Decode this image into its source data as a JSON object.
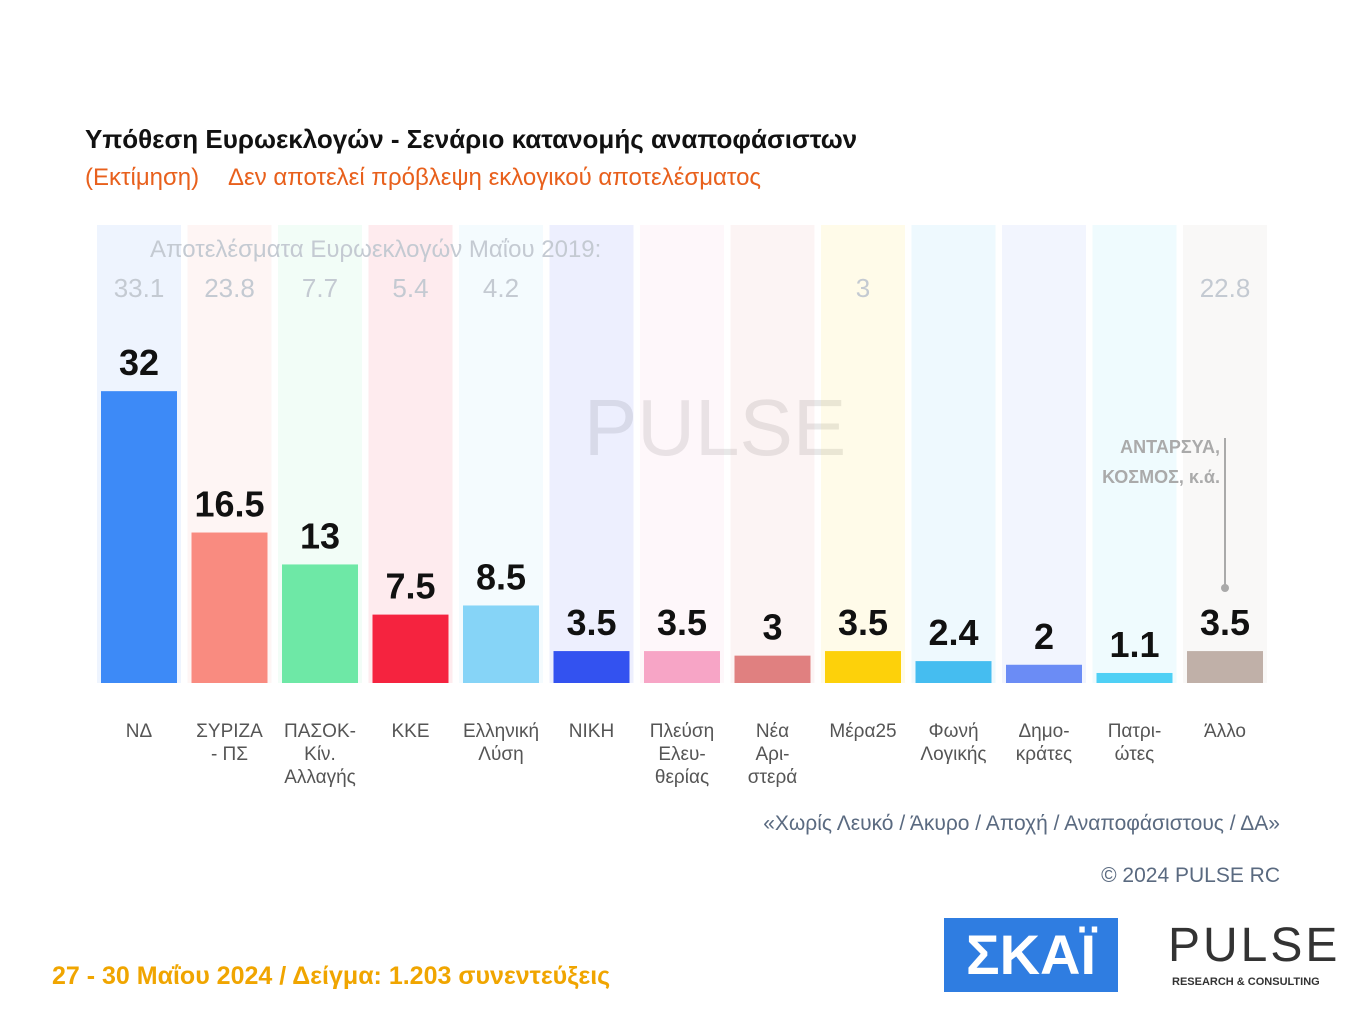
{
  "chart_data": {
    "type": "bar",
    "title": "Υπόθεση Ευρωεκλογών - Σενάριο κατανομής αναποφάσιστων",
    "subtitle_note": "(Εκτίμηση)",
    "subtitle": "Δεν αποτελεί πρόβλεψη εκλογικού αποτελέσματος",
    "categories": [
      "ΝΔ",
      "ΣΥΡΙΖΑ\n- ΠΣ",
      "ΠΑΣΟΚ-Κίν.\nΑλλαγής",
      "ΚΚΕ",
      "Ελληνική\nΛύση",
      "ΝΙΚΗ",
      "Πλεύση\nΕλευ-\nθερίας",
      "Νέα\nΑρι-\nστερά",
      "Μέρα25",
      "Φωνή\nΛογικής",
      "Δημο-\nκράτες",
      "Πατρι-\nώτες",
      "Άλλο"
    ],
    "values": [
      32,
      16.5,
      13,
      7.5,
      8.5,
      3.5,
      3.5,
      3,
      3.5,
      2.4,
      2,
      1.1,
      3.5
    ],
    "colors": [
      "#3d8af7",
      "#f98b80",
      "#6ee8a6",
      "#f5233f",
      "#86d4f7",
      "#3352f0",
      "#f7a5c6",
      "#e08080",
      "#fdd10a",
      "#45bdf0",
      "#6b8cf5",
      "#4fd0f5",
      "#c0b0a8"
    ],
    "previous_label": "Αποτελέσματα Ευρωεκλογών Μαΐου 2019:",
    "previous_values": [
      33.1,
      23.8,
      7.7,
      5.4,
      4.2,
      null,
      null,
      null,
      3,
      null,
      null,
      null,
      22.8
    ],
    "annotation": "ΑΝΤΑΡΣΥΑ,\nΚΟΣΜΟΣ,  κ.ά.",
    "footnote": "«Χωρίς Λευκό / Άκυρο / Αποχή / Αναποφάσιστους / ΔΑ»",
    "copyright": "© 2024 PULSE RC",
    "fieldwork": "27 - 30  Μαΐου 2024  /  Δείγμα:  1.203 συνεντεύξεις",
    "logo_broadcaster": "ΣΚΑΪ",
    "logo_pollster": "PULSE",
    "logo_pollster_tagline": "RESEARCH & CONSULTING"
  }
}
